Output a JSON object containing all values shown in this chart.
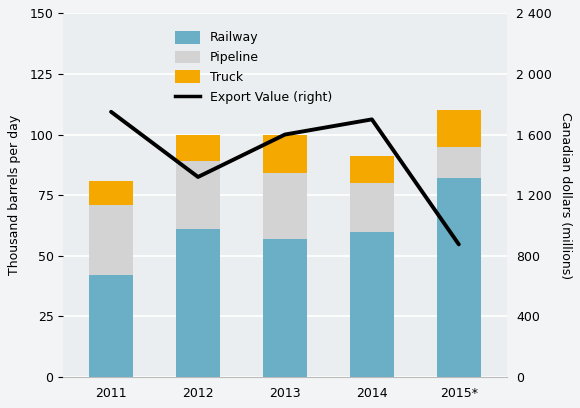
{
  "years": [
    "2011",
    "2012",
    "2013",
    "2014",
    "2015*"
  ],
  "railway": [
    42,
    61,
    57,
    60,
    82
  ],
  "pipeline": [
    29,
    28,
    27,
    20,
    13
  ],
  "truck": [
    10,
    11,
    16,
    11,
    15
  ],
  "export_value": [
    1750,
    1320,
    1600,
    1700,
    875
  ],
  "railway_color": "#6aafc5",
  "pipeline_color": "#d3d3d3",
  "truck_color": "#f5a800",
  "line_color": "#000000",
  "plot_bg_color": "#eaeef0",
  "fig_bg_color": "#f2f4f5",
  "ylabel_left": "Thousand barrels per day",
  "ylabel_right": "Canadian dollars (millions)",
  "ylim_left": [
    0,
    150
  ],
  "ylim_right": [
    0,
    2400
  ],
  "yticks_left": [
    0,
    25,
    50,
    75,
    100,
    125,
    150
  ],
  "yticks_right": [
    0,
    400,
    800,
    1200,
    1600,
    2000,
    2400
  ],
  "ytick_labels_right": [
    "0",
    "400",
    "800",
    "1 200",
    "1 600",
    "2 000",
    "2 400"
  ],
  "legend_labels": [
    "Railway",
    "Pipeline",
    "Truck",
    "Export Value (right)"
  ],
  "bar_width": 0.5,
  "axis_fontsize": 9,
  "tick_fontsize": 9,
  "legend_fontsize": 9
}
